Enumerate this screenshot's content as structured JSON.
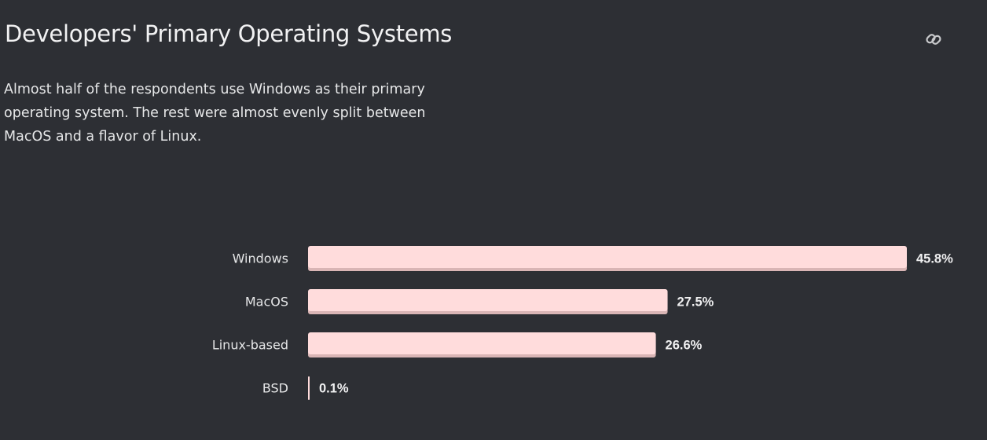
{
  "header": {
    "title": "Developers' Primary Operating Systems",
    "link_icon": "link-icon"
  },
  "description": "Almost half of the respondents use Windows as their primary operating system. The rest were almost evenly split between MacOS and a flavor of Linux.",
  "colors": {
    "background": "#2d2f34",
    "bar": "#ffdcdc",
    "bar_shadow": "#d9b5b5",
    "text": "#e8e9ea"
  },
  "chart_data": {
    "type": "bar",
    "orientation": "horizontal",
    "categories": [
      "Windows",
      "MacOS",
      "Linux-based",
      "BSD"
    ],
    "values": [
      45.8,
      27.5,
      26.6,
      0.1
    ],
    "value_labels": [
      "45.8%",
      "27.5%",
      "26.6%",
      "0.1%"
    ],
    "unit": "%",
    "title": "",
    "xlabel": "",
    "ylabel": "",
    "xlim": [
      0,
      45.8
    ],
    "grid": false,
    "legend": "none"
  }
}
